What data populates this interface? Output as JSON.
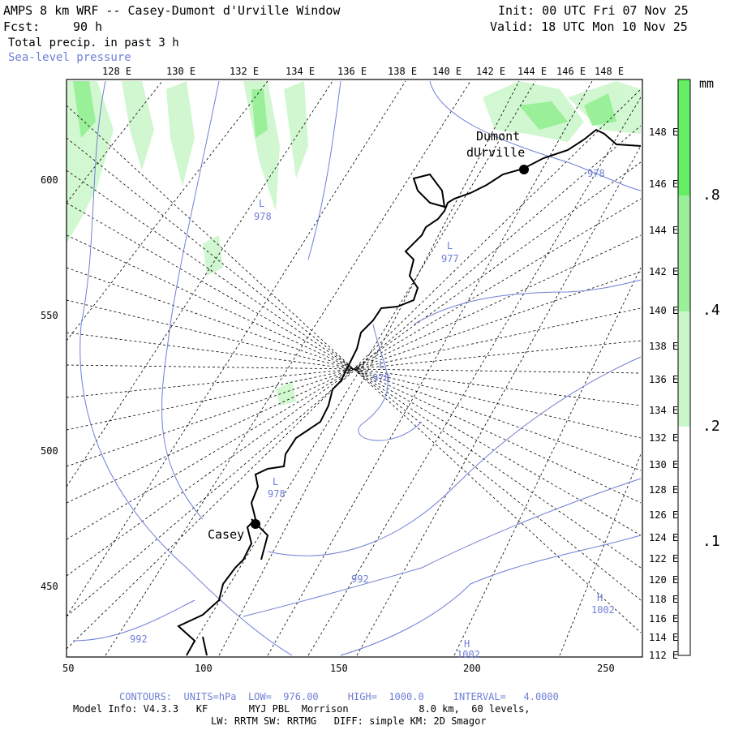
{
  "header": {
    "model_title": "AMPS 8 km WRF -- Casey-Dumont d'Urville Window",
    "forecast_label": "Fcst:",
    "forecast_hours": "90 h",
    "field1": "Total precip. in past 3 h",
    "field2": "Sea-level pressure",
    "init": "Init: 00 UTC Fri 07 Nov 25",
    "valid": "Valid: 18 UTC Mon 10 Nov 25"
  },
  "map": {
    "top_lon_labels": [
      "128 E",
      "130 E",
      "132 E",
      "134 E",
      "136 E",
      "138 E",
      "140 E",
      "142 E",
      "144 E",
      "146 E",
      "148 E"
    ],
    "right_lon_labels": [
      "148 E",
      "146 E",
      "144 E",
      "142 E",
      "140 E",
      "138 E",
      "136 E",
      "134 E",
      "132 E",
      "130 E",
      "128 E",
      "126 E",
      "124 E",
      "122 E",
      "120 E",
      "118 E",
      "116 E",
      "114 E",
      "112 E"
    ],
    "left_ticks": [
      "600",
      "550",
      "500",
      "450"
    ],
    "bottom_ticks": [
      "50",
      "100",
      "150",
      "200",
      "250"
    ],
    "stations": [
      {
        "name": "Dumont",
        "name2": "dUrville"
      },
      {
        "name": "Casey"
      }
    ],
    "pressure_labels": [
      {
        "sym": "L",
        "val": "978"
      },
      {
        "sym": "L",
        "val": "977"
      },
      {
        "sym": "L",
        "val": "978"
      },
      {
        "sym": "L",
        "val": "978"
      },
      {
        "sym": "",
        "val": "992"
      },
      {
        "sym": "",
        "val": "992"
      },
      {
        "sym": "H",
        "val": "1002"
      },
      {
        "sym": "H",
        "val": "1002"
      },
      {
        "sym": "",
        "val": "978"
      }
    ]
  },
  "colorbar": {
    "unit": "mm",
    "labels": [
      ".8",
      ".4",
      ".2",
      ".1"
    ],
    "colors": {
      "c08": "#66ee66",
      "c04": "#99f099",
      "c02": "#ccf7cc",
      "c01": "#ffffff"
    }
  },
  "footer": {
    "contours": "CONTOURS:  UNITS=hPa  LOW=  976.00     HIGH=  1000.0     INTERVAL=   4.0000",
    "model_info": "Model Info: V4.3.3   KF       MYJ PBL  Morrison            8.0 km,  60 levels,",
    "physics": "LW: RRTM SW: RRTMG   DIFF: simple KM: 2D Smagor"
  }
}
